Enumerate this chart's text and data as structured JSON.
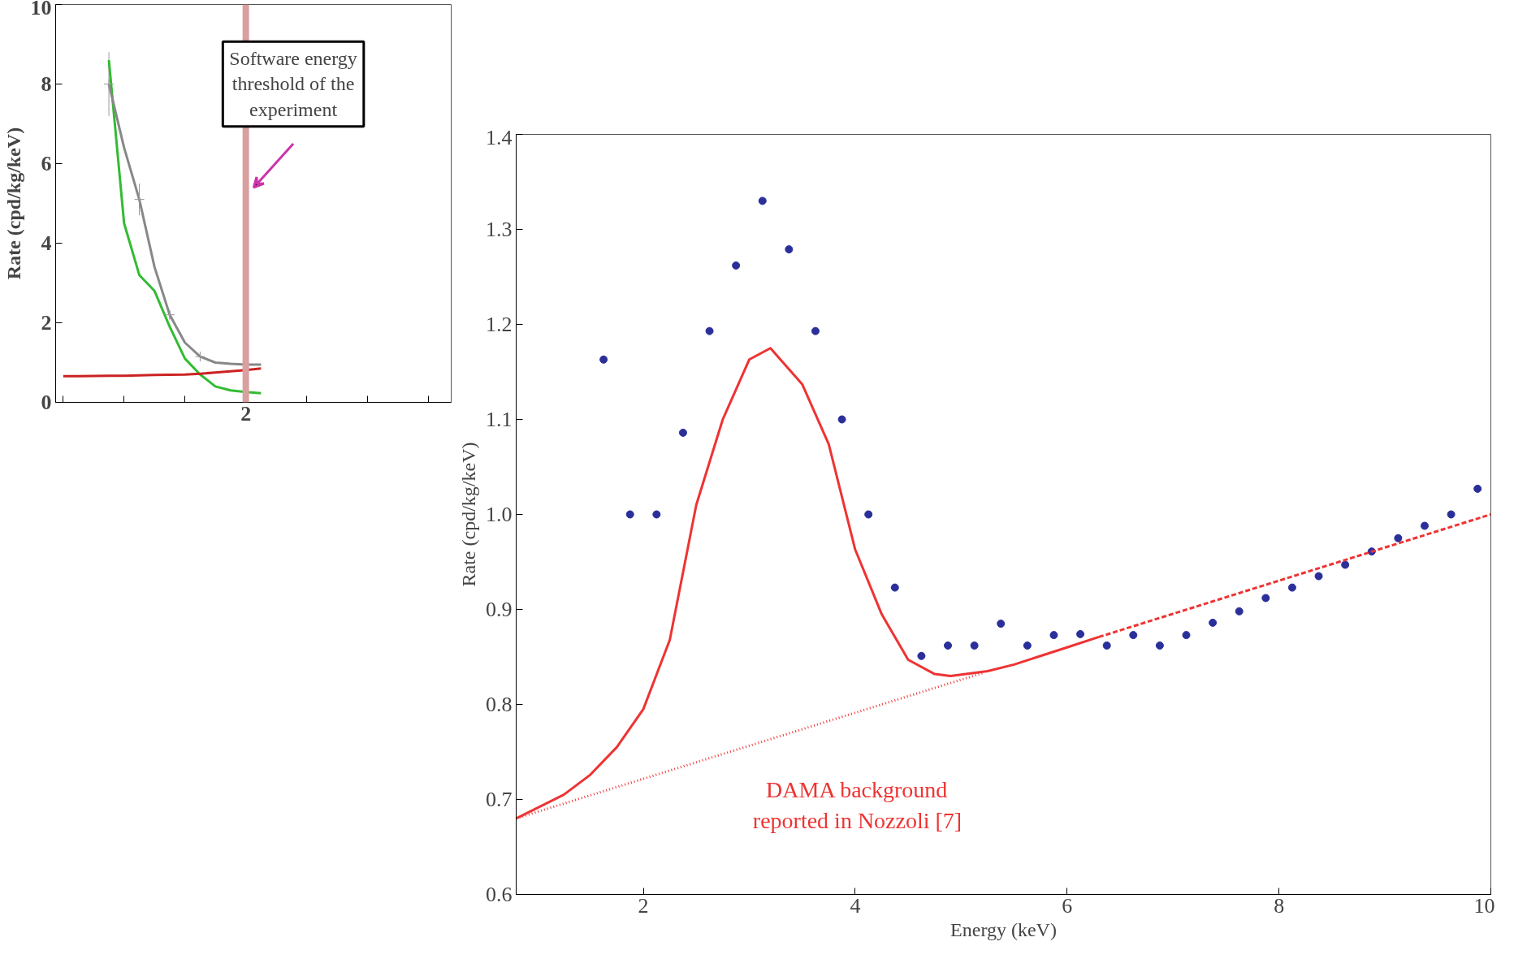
{
  "chart_data": [
    {
      "type": "line",
      "ylabel": "Rate (cpd/kg/keV)",
      "categories": [
        null,
        null,
        null,
        null,
        null,
        null,
        null,
        null,
        null,
        null,
        null,
        null,
        "2",
        null,
        null,
        null,
        null,
        null,
        null,
        null,
        null,
        null,
        null,
        null,
        null,
        null
      ],
      "ylim": [
        0,
        10
      ],
      "yticks": [
        0,
        2,
        4,
        6,
        8,
        10
      ],
      "grid": false,
      "series": [
        {
          "color": "#33bb33",
          "values": [
            null,
            null,
            null,
            8.6,
            4.5,
            3.2,
            2.8,
            1.9,
            1.1,
            0.7,
            0.4,
            0.3,
            0.26,
            0.23,
            null,
            null,
            null,
            null,
            null,
            null,
            null,
            null,
            null,
            null,
            null,
            null
          ]
        },
        {
          "color": "#cc2222",
          "values": [
            0.66,
            0.66,
            0.665,
            0.67,
            0.67,
            0.68,
            0.69,
            0.695,
            0.7,
            0.72,
            0.75,
            0.78,
            0.81,
            0.85,
            null,
            null,
            null,
            null,
            null,
            null,
            null,
            null,
            null,
            null,
            null,
            null
          ]
        },
        {
          "color": "#888888",
          "values": [
            null,
            null,
            null,
            8.0,
            6.4,
            5.1,
            3.4,
            2.2,
            1.5,
            1.15,
            1.0,
            0.97,
            0.95,
            0.95,
            null,
            null,
            null,
            null,
            null,
            null,
            null,
            null,
            null,
            null,
            null,
            null
          ]
        },
        {
          "type": "scatter",
          "marker": "cross",
          "color": "#999999",
          "values": [
            null,
            null,
            null,
            8.0,
            null,
            5.1,
            null,
            2.2,
            null,
            1.15,
            null,
            null,
            null,
            null,
            null,
            null,
            null,
            null,
            null,
            null,
            null,
            null,
            null,
            null,
            null,
            null
          ],
          "errors": [
            null,
            null,
            null,
            0.8,
            null,
            0.4,
            null,
            0.1,
            null,
            0.1,
            null,
            null,
            null,
            null,
            null,
            null,
            null,
            null,
            null,
            null,
            null,
            null,
            null,
            null,
            null,
            null
          ]
        }
      ],
      "ref_lines": [
        {
          "axis": "x",
          "value": "2",
          "color": "#d9a0a0"
        }
      ],
      "annotations": [
        "Software energy threshold of the experiment"
      ]
    },
    {
      "type": "scatter",
      "xlabel": "Energy (keV)",
      "ylabel": "Rate (cpd/kg/keV)",
      "xlim": [
        0.8,
        10
      ],
      "xticks": [
        2,
        4,
        6,
        8,
        10
      ],
      "ylim": [
        0.6,
        1.4
      ],
      "yticks": [
        {
          "value": 0.6,
          "label": "0.6"
        },
        {
          "value": 0.7,
          "label": "0.7"
        },
        {
          "value": 0.8,
          "label": "0.8"
        },
        {
          "value": 0.9,
          "label": "0.9"
        },
        {
          "value": 1.0,
          "label": "1.0"
        },
        {
          "value": 1.1,
          "label": "1.1"
        },
        {
          "value": 1.2,
          "label": "1.2"
        },
        {
          "value": 1.3,
          "label": "1.3"
        },
        {
          "value": 1.4,
          "label": "1.4"
        }
      ],
      "grid": false,
      "series": [
        {
          "type": "scatter",
          "marker": "circle",
          "color": "#2b2f9a",
          "x": [
            1.625,
            1.875,
            2.125,
            2.375,
            2.625,
            2.875,
            3.125,
            3.375,
            3.625,
            3.875,
            4.125,
            4.375,
            4.625,
            4.875,
            5.125,
            5.375,
            5.625,
            5.875,
            6.125,
            6.375,
            6.625,
            6.875,
            7.125,
            7.375,
            7.625,
            7.875,
            8.125,
            8.375,
            8.625,
            8.875,
            9.125,
            9.375,
            9.625,
            9.875
          ],
          "values": [
            1.163,
            1.0,
            1.0,
            1.086,
            1.193,
            1.262,
            1.33,
            1.279,
            1.193,
            1.1,
            1.0,
            0.923,
            0.851,
            0.862,
            0.862,
            0.885,
            0.862,
            0.873,
            0.874,
            0.862,
            0.873,
            0.862,
            0.873,
            0.886,
            0.898,
            0.912,
            0.923,
            0.935,
            0.947,
            0.961,
            0.975,
            0.988,
            1.0,
            1.027
          ]
        },
        {
          "type": "line",
          "line_style": "solid",
          "color": "#ee3333",
          "x": [
            0.8,
            1.25,
            1.5,
            1.75,
            2.0,
            2.25,
            2.5,
            2.75,
            3.0,
            3.2,
            3.5,
            3.75,
            4.0,
            4.25,
            4.5,
            4.75,
            4.9,
            5.25,
            5.5,
            6.0,
            6.3
          ],
          "values": [
            0.68,
            0.705,
            0.726,
            0.755,
            0.795,
            0.868,
            1.01,
            1.1,
            1.163,
            1.175,
            1.137,
            1.074,
            0.963,
            0.895,
            0.847,
            0.832,
            0.83,
            0.835,
            0.842,
            0.86,
            0.871
          ]
        },
        {
          "type": "line",
          "line_style": "dashed",
          "color": "#ee3333",
          "x": [
            6.3,
            10
          ],
          "values": [
            0.871,
            1.0
          ]
        },
        {
          "type": "line",
          "line_style": "dotted",
          "color": "#ee3333",
          "x": [
            0.8,
            5.2
          ],
          "values": [
            0.68,
            0.833
          ]
        }
      ],
      "annotations": [
        "DAMA background\nreported in Nozzoli [7]"
      ]
    }
  ]
}
